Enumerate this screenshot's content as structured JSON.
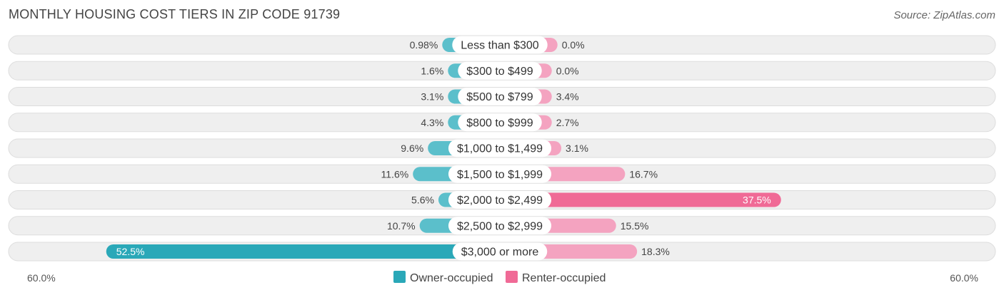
{
  "title": "MONTHLY HOUSING COST TIERS IN ZIP CODE 91739",
  "source": "Source: ZipAtlas.com",
  "colors": {
    "owner": "#5bbfcb",
    "owner_strong": "#2aa8b8",
    "renter": "#f4a3c0",
    "renter_strong": "#f06a96",
    "track": "#efefef",
    "track_border": "#dddddd"
  },
  "chart_data": {
    "type": "bar",
    "orientation": "horizontal-diverging",
    "categories": [
      "Less than $300",
      "$300 to $499",
      "$500 to $799",
      "$800 to $999",
      "$1,000 to $1,499",
      "$1,500 to $1,999",
      "$2,000 to $2,499",
      "$2,500 to $2,999",
      "$3,000 or more"
    ],
    "series": [
      {
        "name": "Owner-occupied",
        "values": [
          0.98,
          1.6,
          3.1,
          4.3,
          9.6,
          11.6,
          5.6,
          10.7,
          52.5
        ],
        "labels": [
          "0.98%",
          "1.6%",
          "3.1%",
          "4.3%",
          "9.6%",
          "11.6%",
          "5.6%",
          "10.7%",
          "52.5%"
        ]
      },
      {
        "name": "Renter-occupied",
        "values": [
          0.0,
          0.0,
          3.4,
          2.7,
          3.1,
          16.7,
          37.5,
          15.5,
          18.3
        ],
        "labels": [
          "0.0%",
          "0.0%",
          "3.4%",
          "2.7%",
          "3.1%",
          "16.7%",
          "37.5%",
          "15.5%",
          "18.3%"
        ]
      }
    ],
    "axis_min_label": "60.0%",
    "axis_max_label": "60.0%",
    "xlim": [
      -60,
      60
    ],
    "legend_position": "bottom-center"
  }
}
